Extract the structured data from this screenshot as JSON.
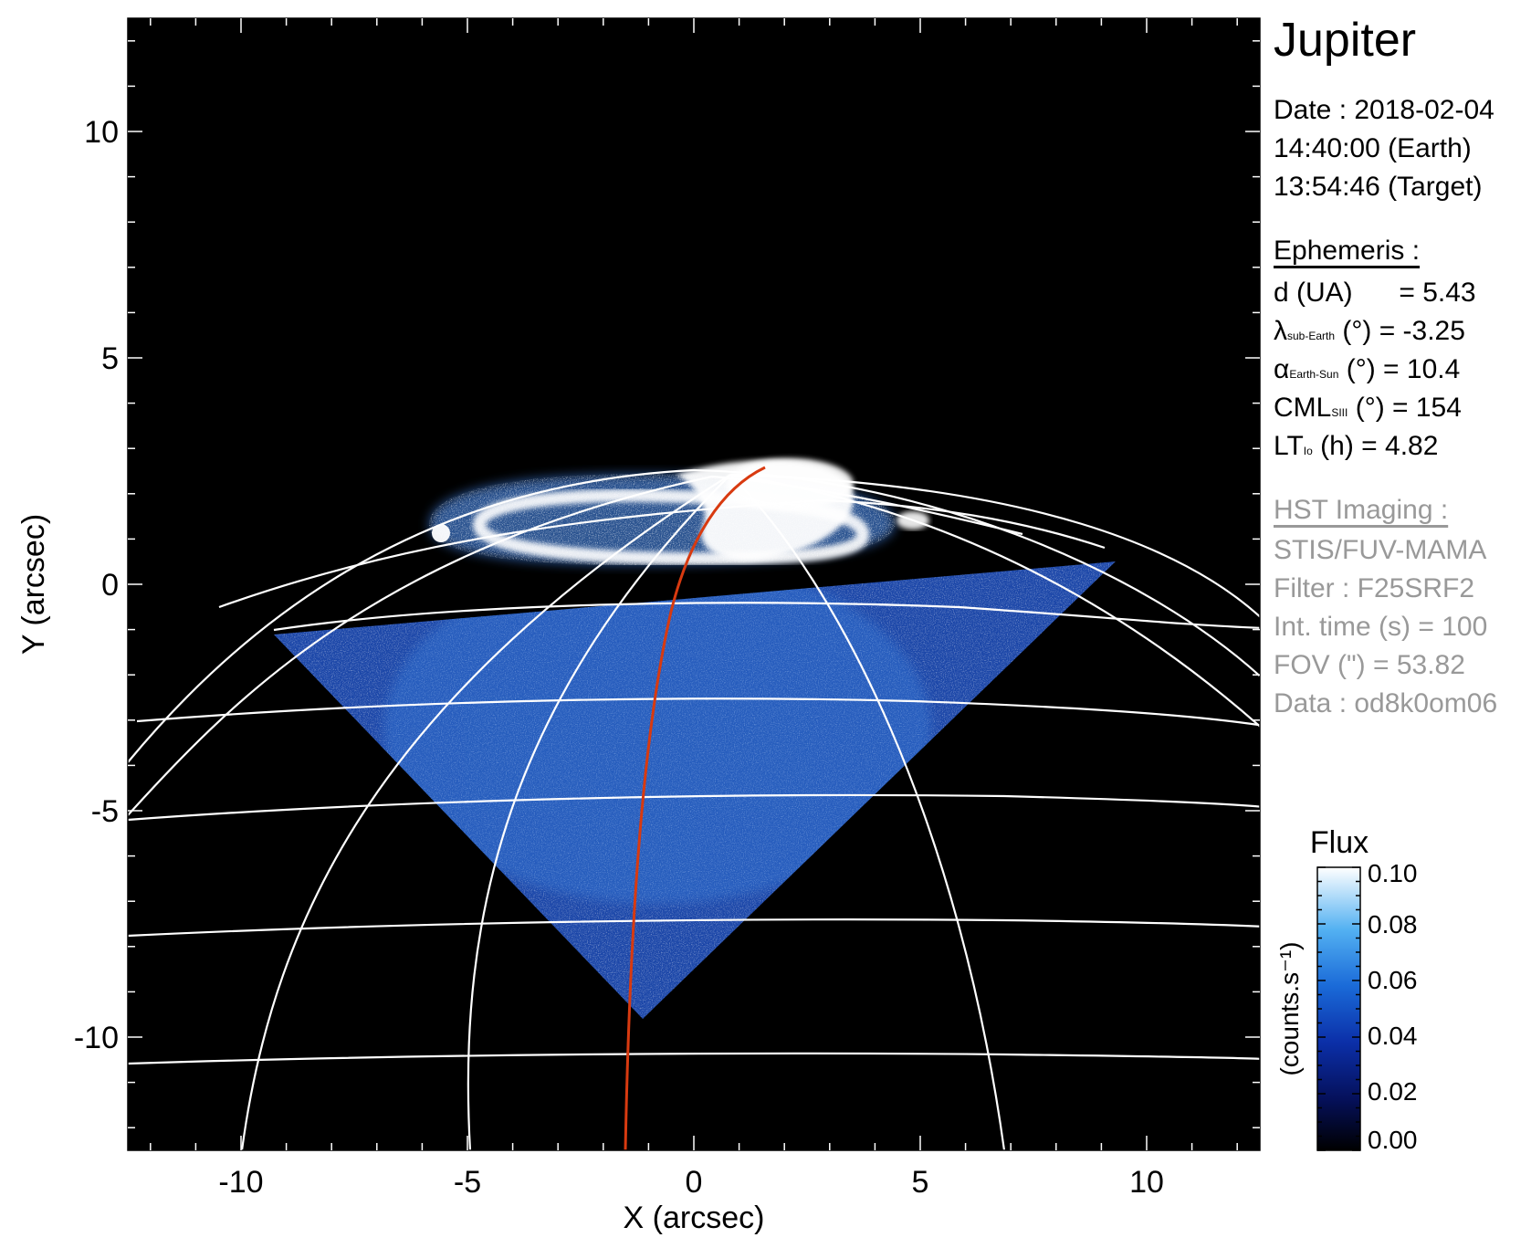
{
  "chart_data": {
    "type": "heatmap",
    "xlabel": "X (arcsec)",
    "ylabel": "Y (arcsec)",
    "xlim": [
      -12.5,
      12.5
    ],
    "ylim": [
      -12.5,
      12.5
    ],
    "xticks": [
      "-10",
      "-5",
      "0",
      "5",
      "10"
    ],
    "yticks": [
      "10",
      "5",
      "0",
      "-5",
      "-10"
    ],
    "colorbar": {
      "title": "Flux",
      "label": "(counts.s⁻¹)",
      "ticks": [
        "0.10",
        "0.08",
        "0.06",
        "0.04",
        "0.02",
        "0.00"
      ],
      "range": [
        0.0,
        0.1
      ]
    },
    "colors": {
      "background": "#000000",
      "grid": "#ffffff",
      "trace": "#d83a10",
      "field": "#1d4fb8",
      "aurora": "#ffffff"
    }
  },
  "info": {
    "target": "Jupiter",
    "date": "Date : 2018-02-04",
    "time_earth": "14:40:00 (Earth)",
    "time_target": "13:54:46 (Target)",
    "ephemeris_title": "Ephemeris :",
    "d_label": "d (UA)",
    "d_value": "= 5.43",
    "lat_symbol": "λ",
    "lat_sub": "sub-Earth",
    "lat_rest": "(°) = -3.25",
    "phase_symbol": "α",
    "phase_sub": "Earth-Sun",
    "phase_rest": "(°) = 10.4",
    "cml_symbol": "CML",
    "cml_sub": "SIII",
    "cml_rest": "(°) = 154",
    "lt_symbol": "LT",
    "lt_sub": "Io",
    "lt_rest": "(h) = 4.82",
    "hst_title": "HST Imaging :",
    "instrument": "STIS/FUV-MAMA",
    "filter": "Filter : F25SRF2",
    "int_time": "Int. time (s) = 100",
    "fov": "FOV (\") = 53.82",
    "data_id": "Data : od8k0om06"
  }
}
